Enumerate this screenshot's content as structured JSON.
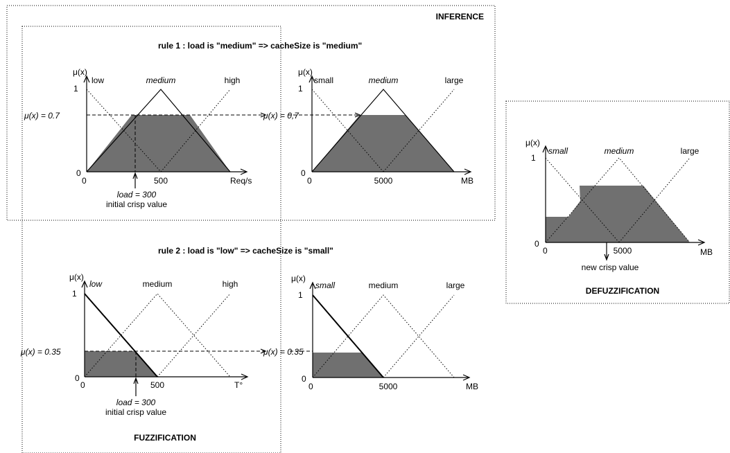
{
  "sections": {
    "inference": "INFERENCE",
    "fuzzification": "FUZZIFICATION",
    "defuzzification": "DEFUZZIFICATION"
  },
  "rules": [
    {
      "text": "rule 1 :  load is \"medium\" => cacheSize is \"medium\""
    },
    {
      "text": "rule 2 :  load is \"low\" => cacheSize is \"small\""
    }
  ],
  "y_axis_label": "μ(x)",
  "y_ticks": [
    "0",
    "1"
  ],
  "panels": [
    {
      "id": "rule1-load",
      "sets": [
        "low",
        "medium",
        "high"
      ],
      "x_ticks": [
        "0",
        "500"
      ],
      "x_unit": "Req/s",
      "mu_label": "μ(x) = 0.7",
      "crisp_label": "load = 300",
      "crisp_caption": "initial crisp value"
    },
    {
      "id": "rule1-cache",
      "sets": [
        "small",
        "medium",
        "large"
      ],
      "x_ticks": [
        "0",
        "5000"
      ],
      "x_unit": "MB",
      "mu_label": "μ(x) = 0,7"
    },
    {
      "id": "rule2-load",
      "sets": [
        "low",
        "medium",
        "high"
      ],
      "x_ticks": [
        "0",
        "500"
      ],
      "x_unit": "T°",
      "mu_label": "μ(x) = 0.35",
      "crisp_label": "load = 300",
      "crisp_caption": "initial crisp value"
    },
    {
      "id": "rule2-cache",
      "sets": [
        "small",
        "medium",
        "large"
      ],
      "x_ticks": [
        "0",
        "5000"
      ],
      "x_unit": "MB",
      "mu_label": "μ(x) = 0.35"
    },
    {
      "id": "defuzz",
      "sets": [
        "small",
        "medium",
        "large"
      ],
      "x_ticks": [
        "0",
        "5000"
      ],
      "x_unit": "MB",
      "crisp_caption": "new crisp value"
    }
  ]
}
